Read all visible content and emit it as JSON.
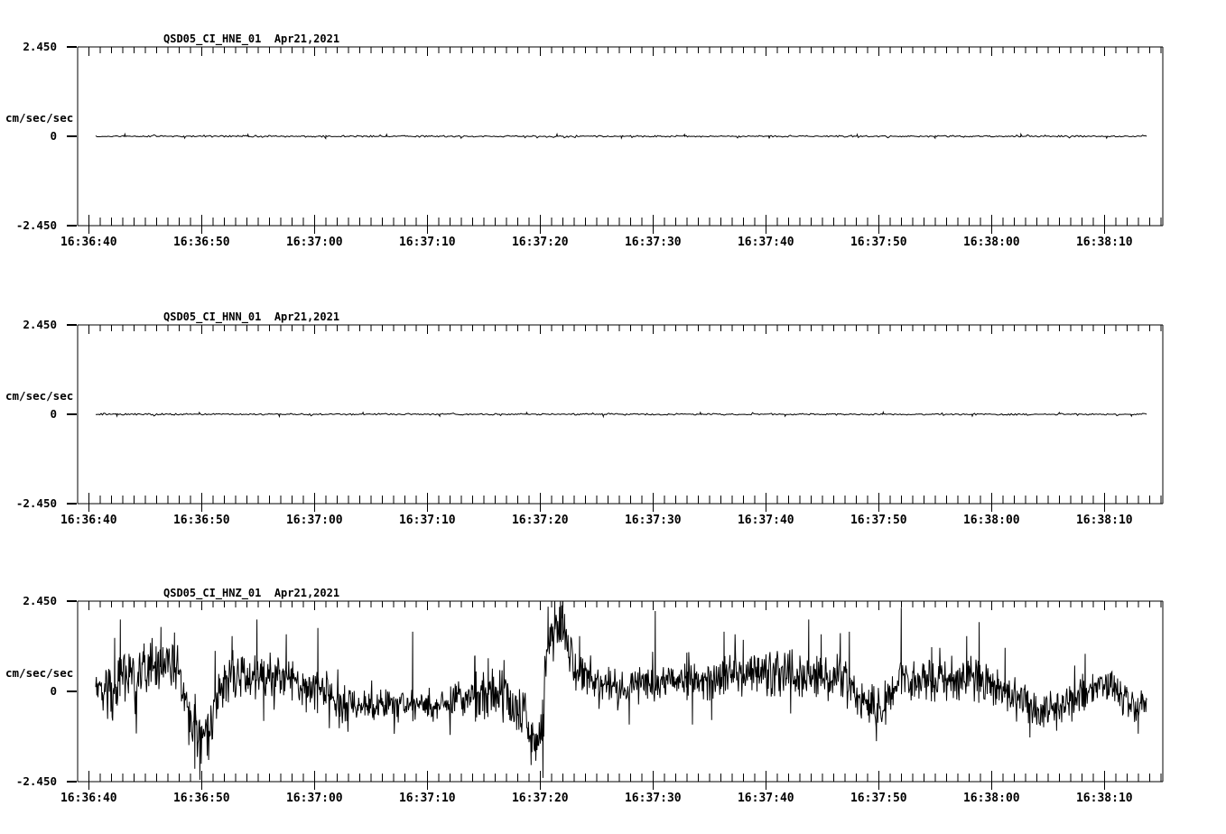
{
  "page": {
    "background_color": "#ffffff",
    "ink_color": "#000000",
    "description": "Three-channel strong-motion seismogram display for station QSD05 (network CI), channels HNE, HNN, HNZ"
  },
  "chart_data": [
    {
      "type": "line",
      "panel": "top",
      "title": "QSD05_CI_HNE_01  Apr21,2021",
      "station_id": "QSD05_CI_HNE_01",
      "date_label": "Apr21,2021",
      "ylabel": "cm/sec/sec",
      "ylim": [
        -2.45,
        2.45
      ],
      "yticks": [
        {
          "label": "2.450",
          "value": 2.45
        },
        {
          "label": "0",
          "value": 0
        },
        {
          "label": "-2.450",
          "value": -2.45
        }
      ],
      "xticks": [
        "16:36:40",
        "16:36:50",
        "16:37:00",
        "16:37:10",
        "16:37:20",
        "16:37:30",
        "16:37:40",
        "16:37:50",
        "16:38:00",
        "16:38:10"
      ],
      "x_major_interval_s": 10,
      "x_minor_interval_s": 1,
      "x_range_s": [
        -1.0,
        95.2
      ],
      "grid": false,
      "trace": {
        "kind": "flat",
        "start_s": 0.62,
        "end_s": 93.8,
        "baseline": 0,
        "noise_amp": 0.018,
        "spikes": [
          [
            3.2,
            0.06
          ],
          [
            8.5,
            -0.05
          ],
          [
            14.1,
            0.05
          ],
          [
            21.0,
            -0.06
          ],
          [
            26.4,
            0.05
          ],
          [
            33.0,
            -0.05
          ],
          [
            41.5,
            0.06
          ],
          [
            47.2,
            -0.05
          ],
          [
            52.8,
            0.05
          ],
          [
            60.3,
            -0.06
          ],
          [
            68.1,
            0.05
          ],
          [
            75.0,
            -0.05
          ],
          [
            82.6,
            0.06
          ],
          [
            90.2,
            -0.05
          ]
        ]
      }
    },
    {
      "type": "line",
      "panel": "middle",
      "title": "QSD05_CI_HNN_01  Apr21,2021",
      "station_id": "QSD05_CI_HNN_01",
      "date_label": "Apr21,2021",
      "ylabel": "cm/sec/sec",
      "ylim": [
        -2.45,
        2.45
      ],
      "yticks": [
        {
          "label": "2.450",
          "value": 2.45
        },
        {
          "label": "0",
          "value": 0
        },
        {
          "label": "-2.450",
          "value": -2.45
        }
      ],
      "xticks": [
        "16:36:40",
        "16:36:50",
        "16:37:00",
        "16:37:10",
        "16:37:20",
        "16:37:30",
        "16:37:40",
        "16:37:50",
        "16:38:00",
        "16:38:10"
      ],
      "x_major_interval_s": 10,
      "x_minor_interval_s": 1,
      "x_range_s": [
        -1.0,
        95.2
      ],
      "grid": false,
      "trace": {
        "kind": "flat",
        "start_s": 0.62,
        "end_s": 93.8,
        "baseline": 0,
        "noise_amp": 0.018,
        "spikes": [
          [
            2.5,
            -0.05
          ],
          [
            9.8,
            0.05
          ],
          [
            16.9,
            -0.06
          ],
          [
            24.3,
            0.05
          ],
          [
            31.1,
            -0.05
          ],
          [
            38.8,
            0.05
          ],
          [
            45.6,
            -0.06
          ],
          [
            54.2,
            0.05
          ],
          [
            61.7,
            -0.05
          ],
          [
            70.4,
            0.06
          ],
          [
            78.3,
            -0.05
          ],
          [
            86.0,
            0.05
          ],
          [
            92.4,
            -0.05
          ]
        ]
      }
    },
    {
      "type": "line",
      "panel": "bottom",
      "title": "QSD05_CI_HNZ_01  Apr21,2021",
      "station_id": "QSD05_CI_HNZ_01",
      "date_label": "Apr21,2021",
      "ylabel": "cm/sec/sec",
      "ylim": [
        -2.45,
        2.45
      ],
      "yticks": [
        {
          "label": "2.450",
          "value": 2.45
        },
        {
          "label": "0",
          "value": 0
        },
        {
          "label": "-2.450",
          "value": -2.45
        }
      ],
      "xticks": [
        "16:36:40",
        "16:36:50",
        "16:37:00",
        "16:37:10",
        "16:37:20",
        "16:37:30",
        "16:37:40",
        "16:37:50",
        "16:38:00",
        "16:38:10"
      ],
      "x_major_interval_s": 10,
      "x_minor_interval_s": 1,
      "x_range_s": [
        -1.0,
        95.2
      ],
      "grid": false,
      "trace": {
        "kind": "noisy",
        "start_s": 0.62,
        "end_s": 93.8,
        "clip": 2.45,
        "envelope": [
          [
            0.62,
            0.3,
            0.5
          ],
          [
            1.3,
            -0.1,
            0.55
          ],
          [
            2.3,
            0.1,
            0.6
          ],
          [
            3.5,
            0.3,
            0.6
          ],
          [
            4.9,
            0.45,
            0.6
          ],
          [
            6.5,
            0.8,
            0.55
          ],
          [
            8.0,
            0.6,
            0.5
          ],
          [
            8.8,
            -0.4,
            0.6
          ],
          [
            9.5,
            -1.3,
            0.6
          ],
          [
            10.6,
            -1.1,
            0.55
          ],
          [
            11.2,
            -0.4,
            0.5
          ],
          [
            12.0,
            0.3,
            0.55
          ],
          [
            13.5,
            0.55,
            0.5
          ],
          [
            15.5,
            0.3,
            0.55
          ],
          [
            16.4,
            0.45,
            0.5
          ],
          [
            17.5,
            0.45,
            0.5
          ],
          [
            19.1,
            0.05,
            0.45
          ],
          [
            20.3,
            0.1,
            0.55
          ],
          [
            21.5,
            -0.25,
            0.45
          ],
          [
            23.2,
            -0.35,
            0.4
          ],
          [
            26.0,
            -0.4,
            0.35
          ],
          [
            28.6,
            -0.35,
            0.35
          ],
          [
            30.5,
            -0.45,
            0.3
          ],
          [
            32.2,
            -0.3,
            0.35
          ],
          [
            33.5,
            -0.1,
            0.55
          ],
          [
            36.2,
            0.0,
            0.6
          ],
          [
            37.8,
            -0.45,
            0.5
          ],
          [
            39.1,
            -1.0,
            0.55
          ],
          [
            40.2,
            -1.2,
            0.6
          ],
          [
            40.6,
            1.2,
            0.7
          ],
          [
            41.2,
            1.6,
            0.6
          ],
          [
            41.9,
            1.9,
            0.55
          ],
          [
            42.6,
            1.0,
            0.5
          ],
          [
            43.3,
            0.5,
            0.45
          ],
          [
            44.6,
            0.25,
            0.35
          ],
          [
            47.0,
            0.1,
            0.35
          ],
          [
            50.0,
            0.2,
            0.35
          ],
          [
            53.0,
            0.3,
            0.4
          ],
          [
            55.2,
            0.3,
            0.4
          ],
          [
            56.8,
            0.45,
            0.45
          ],
          [
            59.5,
            0.5,
            0.45
          ],
          [
            62.2,
            0.5,
            0.5
          ],
          [
            64.9,
            0.35,
            0.5
          ],
          [
            66.6,
            0.4,
            0.55
          ],
          [
            68.2,
            -0.1,
            0.45
          ],
          [
            69.8,
            -0.55,
            0.5
          ],
          [
            71.0,
            -0.1,
            0.45
          ],
          [
            72.0,
            0.4,
            0.45
          ],
          [
            73.5,
            0.25,
            0.4
          ],
          [
            74.7,
            0.25,
            0.45
          ],
          [
            76.0,
            0.3,
            0.45
          ],
          [
            78.0,
            0.5,
            0.5
          ],
          [
            79.8,
            0.15,
            0.45
          ],
          [
            81.2,
            -0.05,
            0.4
          ],
          [
            83.4,
            -0.4,
            0.45
          ],
          [
            85.7,
            -0.55,
            0.4
          ],
          [
            87.0,
            -0.2,
            0.35
          ],
          [
            88.3,
            0.05,
            0.4
          ],
          [
            90.0,
            0.25,
            0.4
          ],
          [
            91.5,
            -0.1,
            0.4
          ],
          [
            92.5,
            -0.35,
            0.4
          ],
          [
            93.8,
            -0.35,
            0.35
          ]
        ],
        "spikes": [
          [
            2.3,
            1.45
          ],
          [
            2.8,
            1.95
          ],
          [
            4.9,
            1.3
          ],
          [
            6.4,
            1.75
          ],
          [
            7.6,
            1.6
          ],
          [
            9.4,
            -2.1
          ],
          [
            9.85,
            -2.4
          ],
          [
            10.5,
            -1.75
          ],
          [
            11.2,
            1.1
          ],
          [
            12.7,
            1.5
          ],
          [
            14.9,
            1.95
          ],
          [
            15.5,
            -0.8
          ],
          [
            17.5,
            1.55
          ],
          [
            20.3,
            1.72
          ],
          [
            22.2,
            -1.0
          ],
          [
            28.7,
            1.62
          ],
          [
            34.2,
            0.95
          ],
          [
            35.4,
            0.9
          ],
          [
            36.8,
            0.85
          ],
          [
            39.2,
            -2.0
          ],
          [
            40.25,
            -2.35
          ],
          [
            40.7,
            2.3
          ],
          [
            41.3,
            2.45
          ],
          [
            41.8,
            2.45
          ],
          [
            42.0,
            2.45
          ],
          [
            43.5,
            1.5
          ],
          [
            47.9,
            -0.9
          ],
          [
            50.2,
            2.18
          ],
          [
            53.0,
            1.05
          ],
          [
            53.5,
            -0.9
          ],
          [
            55.2,
            -0.78
          ],
          [
            56.3,
            1.62
          ],
          [
            58.0,
            1.4
          ],
          [
            62.2,
            -0.6
          ],
          [
            63.8,
            1.95
          ],
          [
            64.9,
            1.55
          ],
          [
            66.6,
            1.58
          ],
          [
            67.4,
            1.62
          ],
          [
            69.8,
            -1.35
          ],
          [
            72.0,
            2.27
          ],
          [
            74.7,
            1.2
          ],
          [
            77.8,
            1.5
          ],
          [
            78.9,
            1.88
          ],
          [
            81.2,
            1.18
          ],
          [
            83.4,
            -1.25
          ],
          [
            88.3,
            1.02
          ],
          [
            93.0,
            -1.15
          ]
        ]
      }
    }
  ]
}
